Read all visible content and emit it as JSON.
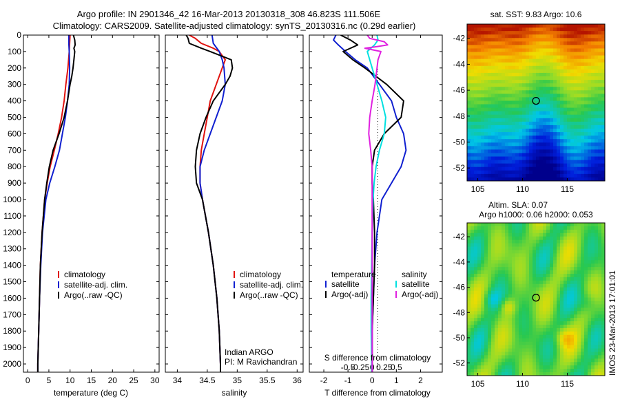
{
  "figure": {
    "title_line1": "Argo profile: IN 2901346_42 16-Mar-2013 20130318_308 46.823S 111.506E",
    "title_line2": "Climatology: CARS2009. Satellite-adjusted climatology: synTS_20130316.nc (0.29d earlier)",
    "side_stamp": "IMOS 23-Mar-2013 17:01:01"
  },
  "colors": {
    "climatology": "#e0120f",
    "satellite": "#1020d0",
    "argo": "#000000",
    "cyan": "#00e0e0",
    "magenta": "#e020e0"
  },
  "chart_data": [
    {
      "type": "line",
      "id": "temperature",
      "xlabel": "temperature (deg C)",
      "xlim": [
        -1,
        31
      ],
      "xticks": [
        0,
        5,
        10,
        15,
        20,
        25,
        30
      ],
      "ylim": [
        0,
        2050
      ],
      "yticks": [
        0,
        100,
        200,
        300,
        400,
        500,
        600,
        700,
        800,
        900,
        1000,
        1100,
        1200,
        1300,
        1400,
        1500,
        1600,
        1700,
        1800,
        1900,
        2000
      ],
      "y_reversed": true,
      "legend": [
        "climatology",
        "satellite-adj. clim.",
        "Argo(..raw -QC)"
      ],
      "series": [
        {
          "name": "climatology",
          "color_key": "climatology",
          "y": [
            0,
            50,
            100,
            200,
            300,
            400,
            500,
            600,
            700,
            800,
            900,
            1000,
            1200,
            1400,
            1600,
            1800,
            2000,
            2050
          ],
          "x": [
            10.0,
            9.9,
            9.8,
            9.5,
            9.0,
            8.6,
            8.0,
            7.2,
            6.3,
            5.3,
            4.6,
            4.0,
            3.4,
            3.0,
            2.8,
            2.6,
            2.4,
            2.4
          ]
        },
        {
          "name": "satellite-adj. clim.",
          "color_key": "satellite",
          "y": [
            0,
            50,
            100,
            200,
            300,
            400,
            500,
            600,
            700,
            800,
            900,
            1000,
            1200,
            1400,
            1600,
            1800,
            2000,
            2050
          ],
          "x": [
            9.7,
            9.7,
            9.8,
            9.9,
            9.8,
            9.4,
            8.9,
            8.2,
            7.5,
            6.4,
            5.2,
            4.3,
            3.5,
            3.1,
            2.8,
            2.6,
            2.4,
            2.4
          ]
        },
        {
          "name": "Argo(..raw -QC)",
          "color_key": "argo",
          "y": [
            0,
            30,
            60,
            80,
            100,
            150,
            200,
            250,
            300,
            400,
            500,
            550,
            600,
            700,
            800,
            900,
            1000,
            1200,
            1400,
            1600,
            1800,
            2000,
            2050
          ],
          "x": [
            10.8,
            11.1,
            11.2,
            10.9,
            11.1,
            10.9,
            10.7,
            10.4,
            10.0,
            9.4,
            8.6,
            8.0,
            7.4,
            6.0,
            5.1,
            4.5,
            4.0,
            3.4,
            3.0,
            2.8,
            2.6,
            2.4,
            2.4
          ]
        }
      ]
    },
    {
      "type": "line",
      "id": "salinity",
      "xlabel": "salinity",
      "xlim": [
        33.8,
        36.1
      ],
      "xticks": [
        34,
        34.5,
        35,
        35.5,
        36
      ],
      "ylim": [
        0,
        2050
      ],
      "y_reversed": true,
      "legend": [
        "climatology",
        "satellite-adj. clim.",
        "Argo(..raw -QC)"
      ],
      "annotation_line1": "Indian ARGO",
      "annotation_line2": "PI: M Ravichandran",
      "series": [
        {
          "name": "climatology",
          "color_key": "climatology",
          "y": [
            0,
            20,
            50,
            80,
            100,
            150,
            200,
            300,
            400,
            500,
            600,
            700,
            800,
            900,
            1000,
            1200,
            1400,
            1600,
            1800,
            2000,
            2050
          ],
          "x": [
            34.2,
            34.3,
            34.4,
            34.6,
            34.7,
            34.8,
            34.75,
            34.65,
            34.55,
            34.5,
            34.45,
            34.4,
            34.38,
            34.38,
            34.42,
            34.52,
            34.6,
            34.66,
            34.7,
            34.72,
            34.72
          ]
        },
        {
          "name": "satellite-adj. clim.",
          "color_key": "satellite",
          "y": [
            0,
            50,
            100,
            150,
            200,
            300,
            400,
            500,
            600,
            700,
            800,
            900,
            1000,
            1200,
            1400,
            1600,
            1800,
            2000,
            2050
          ],
          "x": [
            34.58,
            34.6,
            34.7,
            34.75,
            34.78,
            34.8,
            34.75,
            34.65,
            34.55,
            34.45,
            34.38,
            34.38,
            34.42,
            34.52,
            34.6,
            34.66,
            34.7,
            34.72,
            34.72
          ]
        },
        {
          "name": "Argo(..raw -QC)",
          "color_key": "argo",
          "y": [
            0,
            20,
            50,
            80,
            100,
            150,
            200,
            250,
            300,
            350,
            400,
            500,
            600,
            700,
            800,
            900,
            1000,
            1200,
            1400,
            1600,
            1800,
            2000,
            2050
          ],
          "x": [
            34.15,
            34.18,
            34.2,
            34.4,
            34.55,
            34.9,
            34.92,
            34.88,
            34.8,
            34.7,
            34.6,
            34.48,
            34.38,
            34.32,
            34.3,
            34.32,
            34.42,
            34.52,
            34.6,
            34.66,
            34.7,
            34.72,
            34.72
          ]
        }
      ]
    },
    {
      "type": "line",
      "id": "difference",
      "xlabel": "T difference from climatology",
      "xlabel_top": "S difference from climatology",
      "xlim": [
        -2.6,
        2.9
      ],
      "xticks": [
        -2,
        -1,
        0,
        1,
        2
      ],
      "xticks_top": [
        -0.5,
        -0.25,
        0,
        0.25,
        0.5
      ],
      "ylim": [
        0,
        2050
      ],
      "y_reversed": true,
      "legend_left_title": "temperature",
      "legend_right_title": "salinity",
      "legend_left": [
        "satellite",
        "Argo(-adj)"
      ],
      "legend_right": [
        "satellite",
        "Argo(-adj)"
      ],
      "series": [
        {
          "name": "temperature satellite",
          "color_key": "satellite",
          "y": [
            0,
            30,
            60,
            100,
            150,
            200,
            300,
            400,
            500,
            600,
            700,
            800,
            900,
            1000,
            1200,
            1400,
            1600,
            1800,
            2000,
            2050
          ],
          "x": [
            -1.5,
            -1.6,
            -1.4,
            -1.1,
            -0.7,
            -0.2,
            0.3,
            0.8,
            1.0,
            1.3,
            1.4,
            1.2,
            0.8,
            0.4,
            0.2,
            0.1,
            0.05,
            0.0,
            0.0,
            0.0
          ]
        },
        {
          "name": "temperature Argo(-adj)",
          "color_key": "argo",
          "y": [
            0,
            30,
            60,
            80,
            100,
            150,
            200,
            300,
            400,
            500,
            600,
            700,
            800,
            900,
            1000,
            1200,
            1400,
            1600,
            1800,
            2000,
            2050
          ],
          "x": [
            -1.3,
            -0.9,
            -0.6,
            -0.9,
            -1.2,
            -0.8,
            -0.3,
            0.6,
            1.3,
            1.2,
            0.5,
            0.1,
            0.0,
            0.0,
            0.05,
            0.1,
            0.1,
            0.05,
            0.0,
            0.0,
            0.0
          ]
        },
        {
          "name": "salinity satellite",
          "color_key": "cyan",
          "y": [
            0,
            30,
            60,
            100,
            150,
            200,
            300,
            400,
            500,
            600,
            700,
            800,
            900,
            1000,
            1200,
            1400,
            1600,
            1800,
            2000,
            2050
          ],
          "x": [
            0.1,
            0.12,
            0.05,
            -0.1,
            -0.05,
            0.0,
            0.1,
            0.2,
            0.28,
            0.25,
            0.15,
            0.08,
            0.04,
            0.02,
            0.0,
            -0.01,
            -0.02,
            -0.02,
            -0.01,
            -0.01
          ]
        },
        {
          "name": "salinity Argo(-adj)",
          "color_key": "magenta",
          "y": [
            0,
            20,
            40,
            60,
            70,
            80,
            100,
            150,
            200,
            300,
            400,
            500,
            600,
            700,
            800,
            900,
            1000,
            1200,
            1400,
            1600,
            1800,
            2000,
            2050
          ],
          "x": [
            -0.1,
            -0.05,
            0.25,
            0.32,
            0.1,
            -0.15,
            0.18,
            0.12,
            0.1,
            0.06,
            0.0,
            -0.05,
            -0.07,
            -0.03,
            0.0,
            0.0,
            0.0,
            0.0,
            0.0,
            0.0,
            0.0,
            0.0,
            0.0
          ]
        }
      ]
    },
    {
      "type": "heatmap",
      "id": "sst_map",
      "title": "sat. SST: 9.83 Argo: 10.6",
      "xticks": [
        105,
        110,
        115
      ],
      "yticks": [
        -42,
        -44,
        -46,
        -48,
        -50,
        -52
      ],
      "xlim": [
        103.8,
        119.2
      ],
      "ylim": [
        -53,
        -40.9
      ],
      "marker": {
        "lon": 111.506,
        "lat": -46.823
      }
    },
    {
      "type": "heatmap",
      "id": "sla_map",
      "title": "Altim. SLA: 0.07",
      "subtitle": "Argo h1000: 0.06 h2000: 0.053",
      "xticks": [
        105,
        110,
        115
      ],
      "yticks": [
        -42,
        -44,
        -46,
        -48,
        -50,
        -52
      ],
      "xlim": [
        103.8,
        119.2
      ],
      "ylim": [
        -53,
        -40.9
      ],
      "marker": {
        "lon": 111.506,
        "lat": -46.823
      }
    }
  ]
}
